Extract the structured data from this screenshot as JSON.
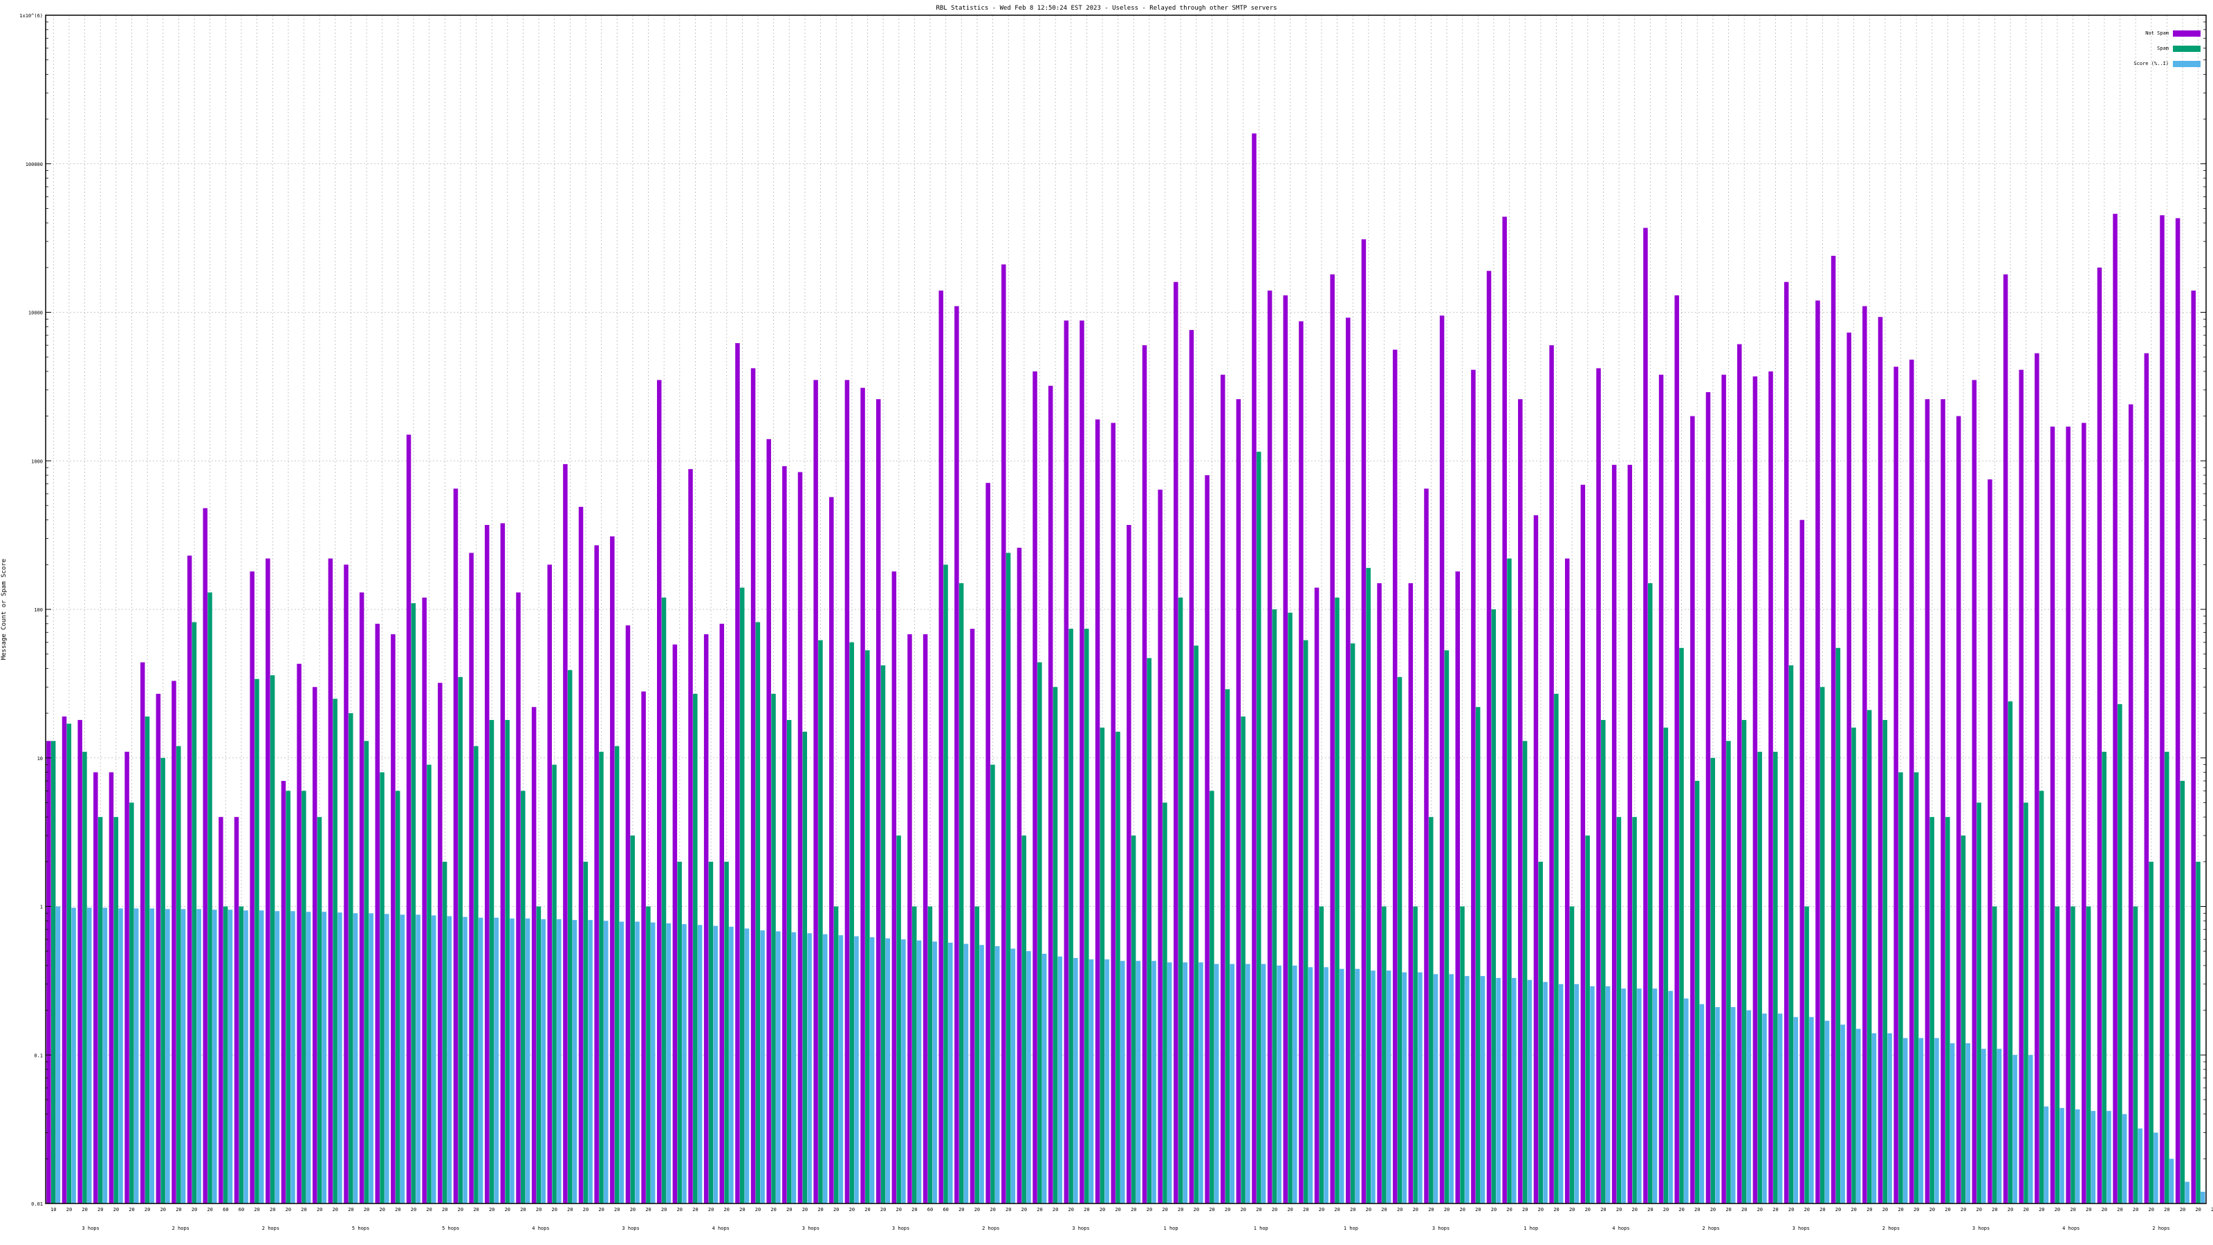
{
  "chart_data": {
    "type": "bar",
    "title": "RBL Statistics - Wed Feb  8 12:50:24 EST 2023 - Useless - Relayed through other SMTP servers",
    "ylabel": "Message Count or Spam Score",
    "yscale": "log",
    "ylim": [
      0.01,
      1000000
    ],
    "y_ticks": [
      {
        "value": 0.01,
        "label": "0.01"
      },
      {
        "value": 0.1,
        "label": "0.1"
      },
      {
        "value": 1,
        "label": "1"
      },
      {
        "value": 10,
        "label": "10"
      },
      {
        "value": 100,
        "label": "100"
      },
      {
        "value": 1000,
        "label": "1000"
      },
      {
        "value": 10000,
        "label": "10000"
      },
      {
        "value": 100000,
        "label": "100000"
      },
      {
        "value": 1000000,
        "label": "1x10^(6)"
      }
    ],
    "grid": true,
    "legend_position": "top-right",
    "colors": {
      "not_spam": "#9400D3",
      "spam": "#009E73",
      "score": "#56B4E9"
    },
    "series": [
      {
        "name": "Not Spam",
        "values": [
          13,
          19,
          18,
          8,
          8,
          11,
          44,
          27,
          33,
          230,
          480,
          4,
          4,
          180,
          220,
          7,
          43,
          30,
          220,
          200,
          130,
          80,
          68,
          1500,
          120,
          32,
          650,
          240,
          370,
          380,
          130,
          22,
          200,
          950,
          490,
          270,
          310,
          78,
          28,
          3500,
          58,
          880,
          68,
          80,
          6200,
          4200,
          1400,
          920,
          840,
          3500,
          570,
          3500,
          3100,
          2600,
          180,
          68,
          68,
          14000,
          11000,
          74,
          710,
          21000,
          260,
          4000,
          3200,
          8800,
          8800,
          1900,
          1800,
          370,
          6000,
          640,
          16000,
          7600,
          800,
          3800,
          2600,
          160000,
          14000,
          13000,
          8700,
          140,
          18000,
          9200,
          31000,
          150,
          5600,
          150,
          650,
          9500,
          180,
          4100,
          19000,
          44000,
          2600,
          430,
          6000,
          220,
          690,
          4200,
          940,
          940,
          37000,
          3800,
          13000,
          2000,
          2900,
          3800,
          6100,
          3700,
          4000,
          16000,
          400,
          12000,
          24000,
          7300,
          11000,
          9300,
          4300,
          4800,
          2600,
          2600,
          2000,
          3500,
          750,
          18000,
          4100,
          5300,
          1700,
          1700,
          1800,
          20000,
          46000,
          2400,
          5300,
          45000,
          43000,
          14000
        ]
      },
      {
        "name": "Spam",
        "values": [
          13,
          17,
          11,
          4,
          4,
          5,
          19,
          10,
          12,
          82,
          130,
          1,
          1,
          34,
          36,
          6,
          6,
          4,
          25,
          20,
          13,
          8,
          6,
          110,
          9,
          2,
          35,
          12,
          18,
          18,
          6,
          1,
          9,
          39,
          2,
          11,
          12,
          3,
          1,
          120,
          2,
          27,
          2,
          2,
          140,
          82,
          27,
          18,
          15,
          62,
          1,
          60,
          53,
          42,
          3,
          1,
          1,
          200,
          150,
          1,
          9,
          240,
          3,
          44,
          30,
          74,
          74,
          16,
          15,
          3,
          47,
          5,
          120,
          57,
          6,
          29,
          19,
          1150,
          100,
          95,
          62,
          1,
          120,
          59,
          190,
          1,
          35,
          1,
          4,
          53,
          1,
          22,
          100,
          220,
          13,
          2,
          27,
          1,
          3,
          18,
          4,
          4,
          150,
          16,
          55,
          7,
          10,
          13,
          18,
          11,
          11,
          42,
          1,
          30,
          55,
          16,
          21,
          18,
          8,
          8,
          4,
          4,
          3,
          5,
          1,
          24,
          5,
          6,
          1,
          1,
          1,
          11,
          23,
          1,
          2,
          11,
          7,
          2
        ]
      },
      {
        "name": "Score (%..I)",
        "values": [
          1,
          0.98,
          0.98,
          0.98,
          0.97,
          0.97,
          0.97,
          0.96,
          0.96,
          0.96,
          0.95,
          0.95,
          0.94,
          0.94,
          0.93,
          0.93,
          0.92,
          0.92,
          0.91,
          0.9,
          0.9,
          0.89,
          0.88,
          0.88,
          0.87,
          0.86,
          0.85,
          0.84,
          0.84,
          0.83,
          0.83,
          0.82,
          0.82,
          0.81,
          0.81,
          0.8,
          0.79,
          0.79,
          0.78,
          0.77,
          0.76,
          0.75,
          0.74,
          0.73,
          0.71,
          0.69,
          0.68,
          0.67,
          0.66,
          0.65,
          0.64,
          0.63,
          0.62,
          0.61,
          0.6,
          0.59,
          0.58,
          0.57,
          0.56,
          0.55,
          0.54,
          0.52,
          0.5,
          0.48,
          0.46,
          0.45,
          0.44,
          0.44,
          0.43,
          0.43,
          0.43,
          0.42,
          0.42,
          0.42,
          0.41,
          0.41,
          0.41,
          0.41,
          0.4,
          0.4,
          0.39,
          0.39,
          0.38,
          0.38,
          0.37,
          0.37,
          0.36,
          0.36,
          0.35,
          0.35,
          0.34,
          0.34,
          0.33,
          0.33,
          0.32,
          0.31,
          0.3,
          0.3,
          0.29,
          0.29,
          0.28,
          0.28,
          0.28,
          0.27,
          0.24,
          0.22,
          0.21,
          0.21,
          0.2,
          0.19,
          0.19,
          0.18,
          0.18,
          0.17,
          0.16,
          0.15,
          0.14,
          0.14,
          0.13,
          0.13,
          0.13,
          0.12,
          0.12,
          0.11,
          0.11,
          0.1,
          0.1,
          0.045,
          0.044,
          0.043,
          0.042,
          0.042,
          0.04,
          0.032,
          0.03,
          0.02,
          0.014,
          0.012
        ]
      }
    ],
    "x_tick_row_labels": [
      "10",
      "20",
      "20",
      "20",
      "20",
      "20",
      "20",
      "20",
      "20",
      "20",
      "20",
      "60",
      "60",
      "20",
      "20",
      "20",
      "20",
      "20",
      "20",
      "20",
      "20",
      "20",
      "20",
      "20",
      "20",
      "20",
      "20",
      "20",
      "20",
      "20",
      "20",
      "20",
      "20",
      "20",
      "20",
      "20",
      "20",
      "20",
      "20",
      "20",
      "20",
      "20",
      "20",
      "20",
      "20",
      "20",
      "20",
      "20",
      "20",
      "20",
      "20",
      "20",
      "20",
      "20",
      "20",
      "20",
      "60",
      "60",
      "20",
      "20",
      "20",
      "20",
      "20",
      "20",
      "20",
      "20",
      "20",
      "20",
      "20",
      "20",
      "20",
      "20",
      "20",
      "20",
      "20",
      "20",
      "20",
      "20",
      "20",
      "20",
      "20",
      "20",
      "20",
      "20",
      "20",
      "20",
      "20",
      "20",
      "20",
      "20",
      "20",
      "20",
      "20",
      "20",
      "20",
      "20",
      "20",
      "20",
      "20",
      "20",
      "20",
      "20",
      "20",
      "20",
      "20",
      "20",
      "20",
      "20",
      "20",
      "20",
      "20",
      "20",
      "20",
      "20",
      "20",
      "20",
      "20",
      "20",
      "20",
      "20",
      "20",
      "20",
      "20",
      "20",
      "20",
      "20",
      "20",
      "20",
      "20",
      "20",
      "20",
      "20",
      "20",
      "20",
      "20",
      "20",
      "20",
      "20",
      "20",
      "20"
    ],
    "x_group_labels": [
      "3 hops",
      "2 hops",
      "2 hops",
      "5 hops",
      "5 hops",
      "4 hops",
      "3 hops",
      "4 hops",
      "3 hops",
      "3 hops",
      "2 hops",
      "3 hops",
      "1 hop",
      "1 hop",
      "1 hop",
      "3 hops",
      "1 hop",
      "4 hops",
      "2 hops",
      "3 hops",
      "2 hops",
      "3 hops",
      "4 hops",
      "2 hops"
    ]
  }
}
